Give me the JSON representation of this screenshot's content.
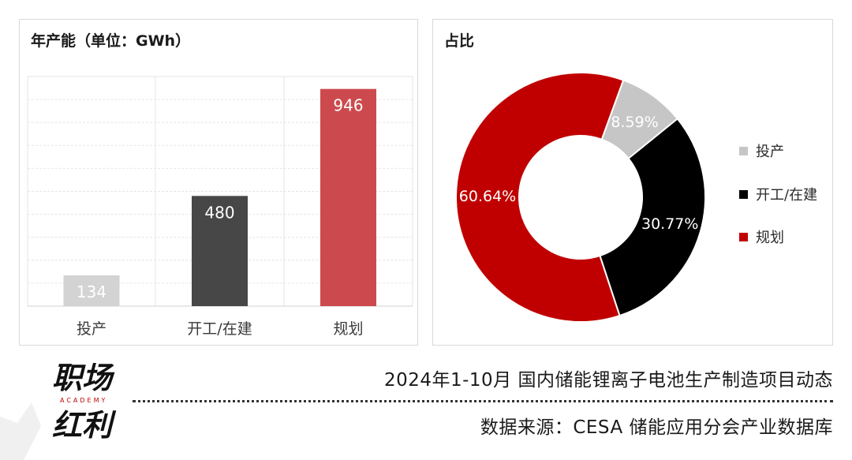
{
  "bar_panel": {
    "title": "年产能（单位：GWh）"
  },
  "pie_panel": {
    "title": "占比"
  },
  "chart_data": [
    {
      "type": "bar",
      "title": "年产能（单位：GWh）",
      "categories": [
        "投产",
        "开工/在建",
        "规划"
      ],
      "values": [
        134,
        480,
        946
      ],
      "value_labels": [
        "134",
        "480",
        "946"
      ],
      "colors": [
        "#d3d3d3",
        "#474747",
        "#cc4a4d"
      ],
      "ylim": [
        0,
        1000
      ],
      "grid": true
    },
    {
      "type": "pie",
      "title": "占比",
      "donut": true,
      "labels": [
        "投产",
        "开工/在建",
        "规划"
      ],
      "values": [
        8.59,
        30.77,
        60.64
      ],
      "value_labels": [
        "8.59%",
        "30.77%",
        "60.64%"
      ],
      "colors": [
        "#c6c6c6",
        "#000000",
        "#c00000"
      ],
      "legend": "right"
    }
  ],
  "footer": {
    "logo_text_top": "职场",
    "logo_text_bottom": "红利",
    "logo_sub": "ACADEMY",
    "title": "2024年1-10月 国内储能锂离子电池生产制造项目动态",
    "source": "数据来源：CESA 储能应用分会产业数据库"
  }
}
